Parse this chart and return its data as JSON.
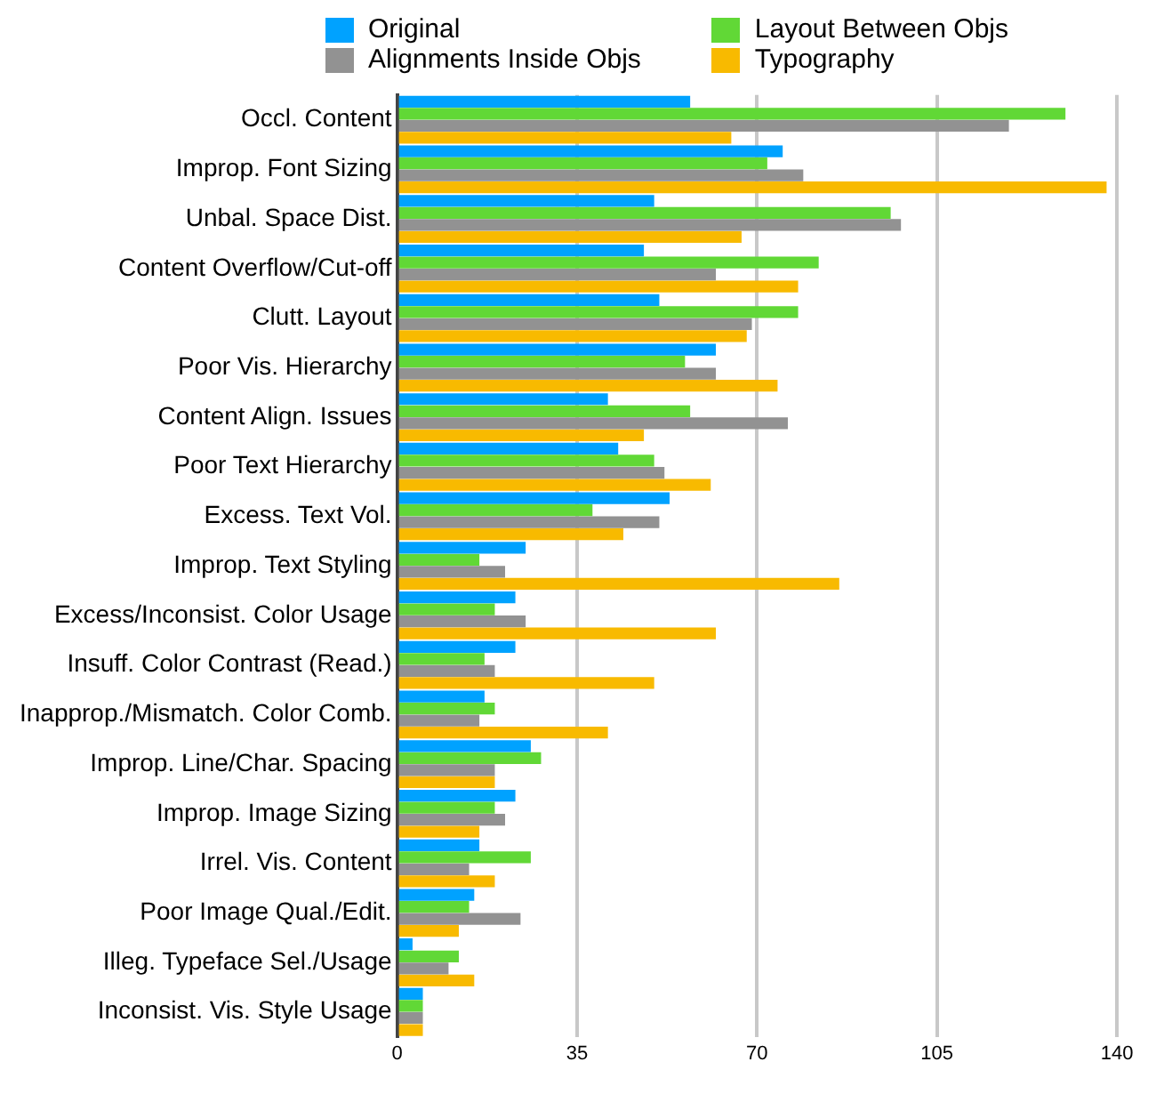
{
  "chart_data": {
    "type": "bar",
    "orientation": "horizontal",
    "categories": [
      "Occl. Content",
      "Improp. Font Sizing",
      "Unbal. Space Dist.",
      "Content Overflow/Cut-off",
      "Clutt. Layout",
      "Poor Vis. Hierarchy",
      "Content Align. Issues",
      "Poor Text Hierarchy",
      "Excess. Text Vol.",
      "Improp. Text Styling",
      "Excess/Inconsist. Color Usage",
      "Insuff. Color Contrast (Read.)",
      "Inapprop./Mismatch. Color Comb.",
      "Improp. Line/Char. Spacing",
      "Improp. Image Sizing",
      "Irrel. Vis. Content",
      "Poor Image Qual./Edit.",
      "Illeg. Typeface Sel./Usage",
      "Inconsist. Vis. Style Usage"
    ],
    "series": [
      {
        "name": "Original",
        "color": "#00a2ff",
        "values": [
          57,
          75,
          50,
          48,
          51,
          62,
          41,
          43,
          53,
          25,
          23,
          23,
          17,
          26,
          23,
          16,
          15,
          3,
          5
        ]
      },
      {
        "name": "Layout Between Objs",
        "color": "#61d836",
        "values": [
          130,
          72,
          96,
          82,
          78,
          56,
          57,
          50,
          38,
          16,
          19,
          17,
          19,
          28,
          19,
          26,
          14,
          12,
          5
        ]
      },
      {
        "name": "Alignments Inside Objs",
        "color": "#929292",
        "values": [
          119,
          79,
          98,
          62,
          69,
          62,
          76,
          52,
          51,
          21,
          25,
          19,
          16,
          19,
          21,
          14,
          24,
          10,
          5
        ]
      },
      {
        "name": "Typography",
        "color": "#f8ba00",
        "values": [
          65,
          138,
          67,
          78,
          68,
          74,
          48,
          61,
          44,
          86,
          62,
          50,
          41,
          19,
          16,
          19,
          12,
          15,
          5
        ]
      }
    ],
    "xlim": [
      0,
      140
    ],
    "xticks": [
      0,
      35,
      70,
      105,
      140
    ],
    "grid": "x",
    "legend": "top"
  }
}
